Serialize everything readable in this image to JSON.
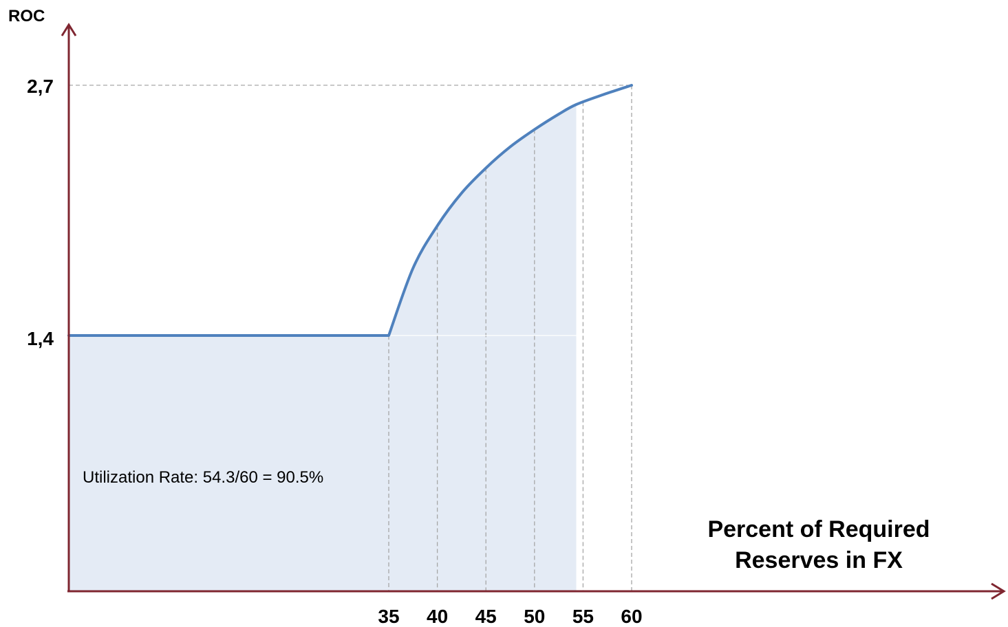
{
  "chart_data": {
    "type": "area",
    "ylabel": "ROC",
    "xlabel_lines": [
      "Percent of Required",
      "Reserves in FX"
    ],
    "x_ticks": [
      "35",
      "40",
      "45",
      "50",
      "55",
      "60"
    ],
    "y_ticks": [
      "1,4",
      "2,7"
    ],
    "annotation": "Utilization Rate: 54.3/60 =  90.5%",
    "series": [
      {
        "x": [
          0,
          35,
          37.5,
          40,
          42.5,
          45,
          47.5,
          50,
          52.5,
          54.3,
          57,
          60
        ],
        "y": [
          1.4,
          1.4,
          1.75,
          1.97,
          2.14,
          2.27,
          2.38,
          2.47,
          2.55,
          2.6,
          2.65,
          2.7
        ]
      }
    ],
    "fill_to_x": 54.3,
    "xlim": [
      0,
      60
    ],
    "ylim": [
      0,
      2.7
    ],
    "colors": {
      "axis": "#7f2630",
      "line": "#4f81bd",
      "fill": "#e4ebf5",
      "guide": "#a6a6a6"
    }
  }
}
